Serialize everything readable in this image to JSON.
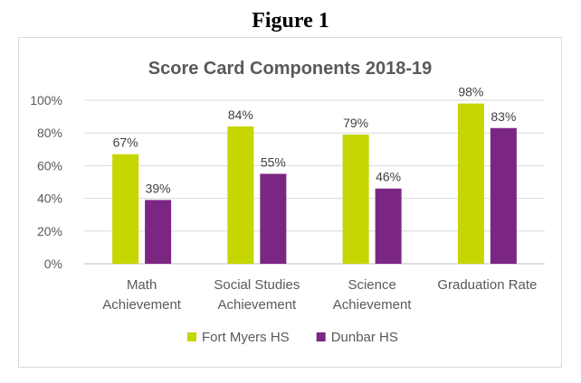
{
  "figure": {
    "title": "Figure 1"
  },
  "chart_data": {
    "type": "bar",
    "title": "Score Card Components 2018-19",
    "categories": [
      [
        "Math",
        "Achievement"
      ],
      [
        "Social Studies",
        "Achievement"
      ],
      [
        "Science",
        "Achievement"
      ],
      [
        "Graduation Rate"
      ]
    ],
    "series": [
      {
        "name": "Fort Myers HS",
        "color": "#c5d600",
        "values": [
          67,
          84,
          79,
          98
        ],
        "labels": [
          "67%",
          "84%",
          "79%",
          "98%"
        ]
      },
      {
        "name": "Dunbar HS",
        "color": "#7b2683",
        "values": [
          39,
          55,
          46,
          83
        ],
        "labels": [
          "39%",
          "55%",
          "46%",
          "83%"
        ]
      }
    ],
    "y_ticks": [
      "0%",
      "20%",
      "40%",
      "60%",
      "80%",
      "100%"
    ],
    "ylim": [
      0,
      100
    ],
    "grid": true,
    "legend_position": "bottom"
  }
}
